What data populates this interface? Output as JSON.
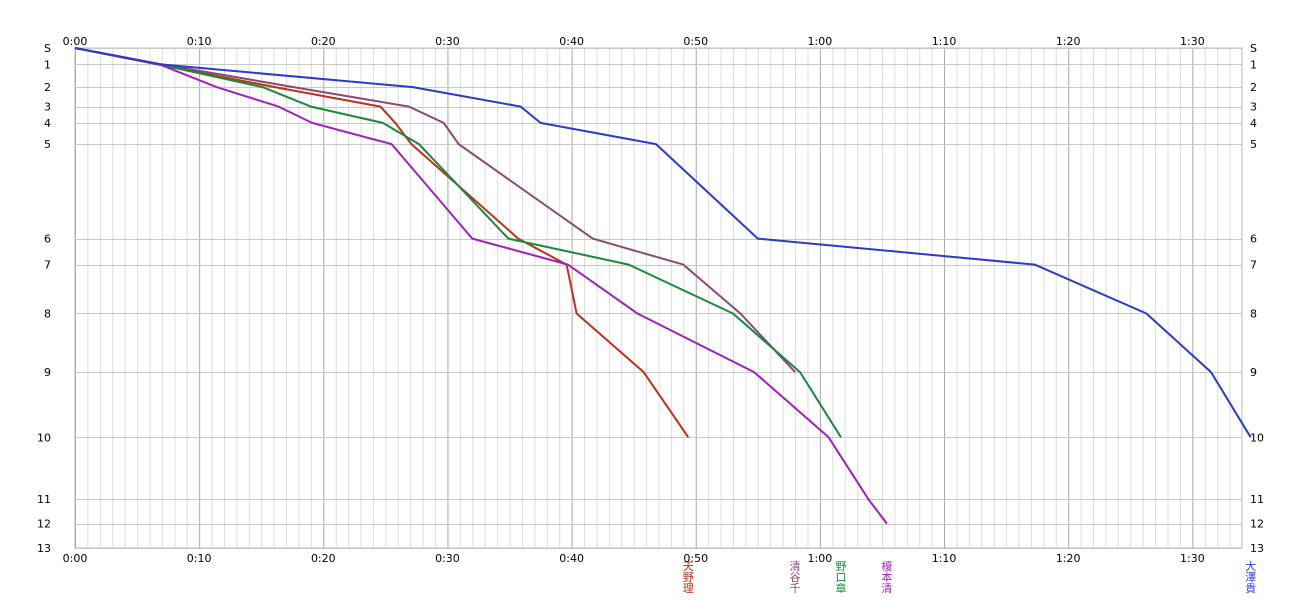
{
  "chart_data": {
    "type": "line",
    "title": "",
    "xlabel": "",
    "ylabel": "",
    "grid": true,
    "x_unit": "elapsed time (h:mm)",
    "x_range_minutes": [
      0,
      94
    ],
    "x_tick_labels": [
      "0:00",
      "0:10",
      "0:20",
      "0:30",
      "0:40",
      "0:50",
      "1:00",
      "1:10",
      "1:20",
      "1:30"
    ],
    "y_tick_labels": [
      "S",
      "1",
      "2",
      "3",
      "4",
      "5",
      "6",
      "7",
      "8",
      "9",
      "10",
      "11",
      "12",
      "13"
    ],
    "y_distance": {
      "S": 0,
      "1": 1,
      "2": 2.4,
      "3": 3.6,
      "4": 4.6,
      "5": 5.9,
      "6": 11.7,
      "7": 13.3,
      "8": 16.3,
      "9": 19.9,
      "10": 23.9,
      "11": 27.7,
      "12": 29.2,
      "13": 30.7
    },
    "series": [
      {
        "name": "天野理",
        "color": "#c0301a",
        "times_min": [
          0,
          6.6,
          16.1,
          24.6,
          25.8,
          27.1,
          35.7,
          39.6,
          40.4,
          45.8,
          49.4
        ]
      },
      {
        "name": "清谷千",
        "color": "#8a4a72",
        "times_min": [
          0,
          7.0,
          17.6,
          26.9,
          29.7,
          30.9,
          41.7,
          49.0,
          53.6,
          58.0
        ]
      },
      {
        "name": "野口章",
        "color": "#1a8a3a",
        "times_min": [
          0,
          6.7,
          15.1,
          19.0,
          24.8,
          27.7,
          34.9,
          44.6,
          53.0,
          58.4,
          61.7
        ]
      },
      {
        "name": "榎本清",
        "color": "#a020c0",
        "times_min": [
          0,
          6.8,
          11.4,
          16.4,
          19.1,
          25.5,
          32.0,
          39.7,
          45.3,
          54.7,
          60.7,
          63.9,
          65.4
        ]
      },
      {
        "name": "大澤貴",
        "color": "#2a3cc8",
        "times_min": [
          0,
          6.8,
          27.2,
          35.9,
          37.5,
          46.8,
          55.0,
          77.3,
          86.3,
          91.5,
          94.7
        ]
      }
    ]
  }
}
